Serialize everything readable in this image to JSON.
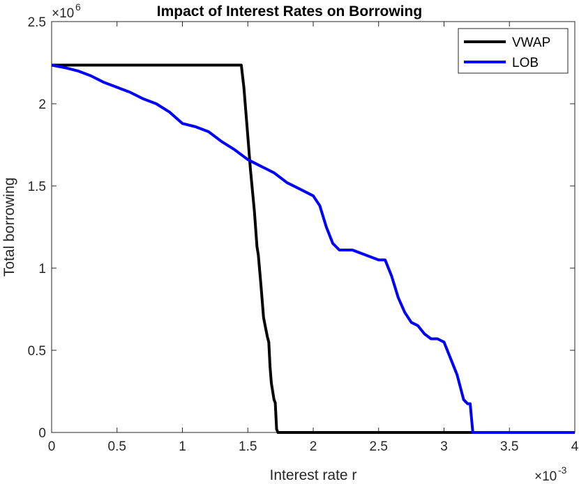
{
  "chart_data": {
    "type": "line",
    "title": "Impact of Interest Rates on Borrowing",
    "xlabel": "Interest rate r",
    "ylabel": "Total borrowing",
    "x_exponent": {
      "base": "×10",
      "power": "-3"
    },
    "y_exponent": {
      "base": "×10",
      "power": "6"
    },
    "xlim": [
      0,
      4
    ],
    "ylim": [
      0,
      2.5
    ],
    "x_ticks": [
      "0",
      "0.5",
      "1",
      "1.5",
      "2",
      "2.5",
      "3",
      "3.5",
      "4"
    ],
    "y_ticks": [
      "0",
      "0.5",
      "1",
      "1.5",
      "2",
      "2.5"
    ],
    "x_tick_values": [
      0,
      0.5,
      1,
      1.5,
      2,
      2.5,
      3,
      3.5,
      4
    ],
    "y_tick_values": [
      0,
      0.5,
      1,
      1.5,
      2,
      2.5
    ],
    "grid": false,
    "legend_position": "top-right",
    "series": [
      {
        "name": "VWAP",
        "color": "#000000",
        "x": [
          0,
          1.45,
          1.47,
          1.49,
          1.5,
          1.52,
          1.55,
          1.57,
          1.58,
          1.6,
          1.62,
          1.63,
          1.65,
          1.66,
          1.67,
          1.68,
          1.7,
          1.71,
          1.72,
          1.73,
          4.0
        ],
        "y": [
          2.235,
          2.235,
          2.1,
          1.9,
          1.8,
          1.6,
          1.35,
          1.13,
          1.08,
          0.9,
          0.7,
          0.66,
          0.58,
          0.55,
          0.4,
          0.3,
          0.2,
          0.18,
          0.02,
          0,
          0
        ]
      },
      {
        "name": "LOB",
        "color": "#0000ff",
        "x": [
          0,
          0.1,
          0.2,
          0.3,
          0.4,
          0.5,
          0.6,
          0.7,
          0.8,
          0.9,
          1.0,
          1.1,
          1.2,
          1.3,
          1.4,
          1.5,
          1.6,
          1.7,
          1.8,
          1.9,
          2.0,
          2.05,
          2.1,
          2.15,
          2.2,
          2.3,
          2.4,
          2.5,
          2.55,
          2.6,
          2.65,
          2.7,
          2.75,
          2.8,
          2.85,
          2.9,
          2.95,
          3.0,
          3.05,
          3.1,
          3.15,
          3.18,
          3.2,
          3.22,
          3.3,
          4.0
        ],
        "y": [
          2.235,
          2.22,
          2.2,
          2.17,
          2.13,
          2.1,
          2.07,
          2.03,
          2.0,
          1.95,
          1.88,
          1.86,
          1.83,
          1.77,
          1.72,
          1.66,
          1.62,
          1.58,
          1.52,
          1.48,
          1.44,
          1.38,
          1.25,
          1.15,
          1.11,
          1.11,
          1.08,
          1.05,
          1.05,
          0.95,
          0.82,
          0.73,
          0.67,
          0.65,
          0.6,
          0.57,
          0.57,
          0.55,
          0.45,
          0.35,
          0.2,
          0.175,
          0.175,
          0,
          0,
          0
        ]
      }
    ]
  }
}
